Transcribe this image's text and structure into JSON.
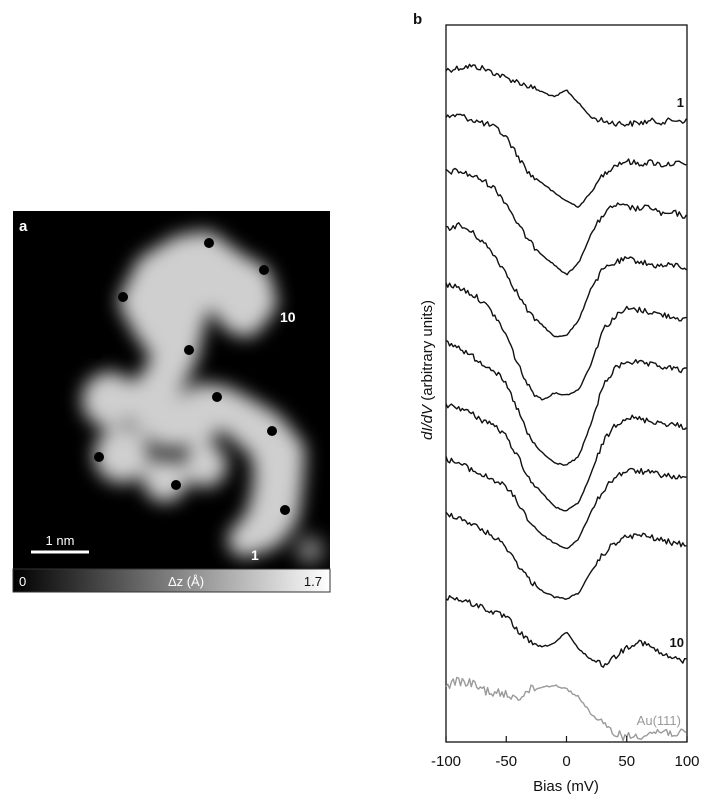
{
  "panel_a": {
    "panel_letter": "a",
    "scale_bar_label": "1 nm",
    "label_start": "1",
    "label_end": "10",
    "colorbar": {
      "min_label": "0",
      "max_label": "1.7",
      "label": "Δz (Å)"
    }
  },
  "panel_b": {
    "panel_letter": "b"
  },
  "chart_data": {
    "type": "line",
    "xlabel": "Bias (mV)",
    "ylabel_prefix": "dI/dV",
    "ylabel_suffix": " (arbitrary units)",
    "xlim": [
      -100,
      100
    ],
    "xticks": [
      "-100",
      "-50",
      "0",
      "50",
      "100"
    ],
    "grid": false,
    "x": [
      -100,
      -90,
      -80,
      -70,
      -60,
      -50,
      -40,
      -30,
      -20,
      -10,
      0,
      10,
      20,
      30,
      40,
      50,
      60,
      70,
      80,
      90,
      100
    ],
    "series": [
      {
        "name": "1",
        "color": "#111111",
        "values": [
          45,
          43,
          41,
          43,
          48,
          53,
          57,
          62,
          67,
          72,
          65,
          78,
          92,
          96,
          98,
          99,
          98,
          96,
          97,
          95,
          96
        ]
      },
      {
        "name": "",
        "color": "#111111",
        "values": [
          92,
          90,
          94,
          98,
          102,
          112,
          132,
          150,
          158,
          168,
          176,
          182,
          168,
          150,
          140,
          136,
          139,
          137,
          140,
          138,
          140
        ]
      },
      {
        "name": "",
        "color": "#111111",
        "values": [
          147,
          146,
          150,
          155,
          163,
          178,
          200,
          218,
          230,
          240,
          250,
          238,
          210,
          190,
          180,
          182,
          184,
          182,
          190,
          188,
          192
        ]
      },
      {
        "name": "",
        "color": "#111111",
        "values": [
          204,
          200,
          206,
          216,
          230,
          248,
          270,
          290,
          300,
          312,
          310,
          296,
          264,
          245,
          238,
          234,
          236,
          240,
          241,
          240,
          243
        ]
      },
      {
        "name": "",
        "color": "#111111",
        "values": [
          260,
          262,
          268,
          276,
          290,
          310,
          340,
          365,
          375,
          368,
          370,
          365,
          340,
          305,
          292,
          284,
          285,
          287,
          290,
          292,
          295
        ]
      },
      {
        "name": "",
        "color": "#111111",
        "values": [
          318,
          322,
          330,
          338,
          345,
          360,
          386,
          415,
          428,
          438,
          440,
          432,
          400,
          362,
          344,
          336,
          338,
          340,
          342,
          344,
          346
        ]
      },
      {
        "name": "",
        "color": "#111111",
        "values": [
          380,
          382,
          388,
          395,
          400,
          412,
          432,
          456,
          468,
          482,
          486,
          478,
          450,
          418,
          400,
          392,
          394,
          396,
          398,
          400,
          402
        ]
      },
      {
        "name": "",
        "color": "#111111",
        "values": [
          434,
          438,
          444,
          450,
          455,
          462,
          478,
          498,
          510,
          518,
          524,
          514,
          488,
          466,
          452,
          446,
          446,
          448,
          450,
          452,
          454
        ]
      },
      {
        "name": "",
        "color": "#111111",
        "values": [
          488,
          492,
          498,
          505,
          512,
          522,
          540,
          556,
          566,
          572,
          574,
          568,
          548,
          530,
          518,
          512,
          510,
          512,
          516,
          518,
          520
        ]
      },
      {
        "name": "10",
        "color": "#111111",
        "values": [
          572,
          574,
          578,
          582,
          588,
          592,
          606,
          618,
          622,
          618,
          607,
          624,
          634,
          640,
          632,
          622,
          616,
          622,
          630,
          634,
          636
        ]
      },
      {
        "name": "Au(111)",
        "color": "#9a9a9a",
        "values": [
          660,
          656,
          658,
          664,
          668,
          670,
          672,
          665,
          662,
          660,
          664,
          672,
          688,
          700,
          708,
          712,
          710,
          708,
          706,
          708,
          710
        ]
      }
    ]
  }
}
